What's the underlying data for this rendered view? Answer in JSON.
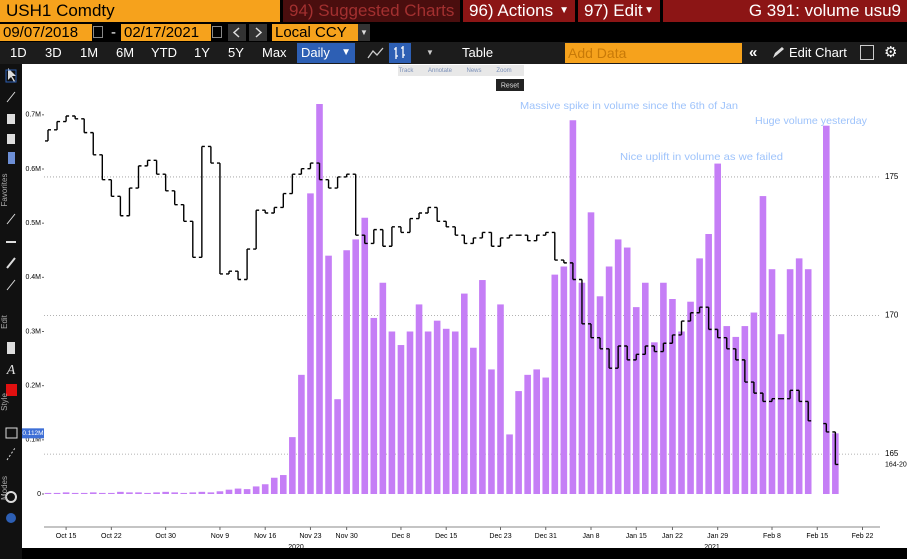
{
  "toolbar": {
    "ticker": "USH1 Comdty",
    "suggested": "94) Suggested Charts",
    "actions": "96) Actions",
    "edit": "97) Edit",
    "function": "G 391: volume usu9",
    "start_date": "09/07/2018",
    "date_sep": "-",
    "end_date": "02/17/2021",
    "currency": "Local CCY",
    "ranges": [
      "1D",
      "3D",
      "1M",
      "6M",
      "YTD",
      "1Y",
      "5Y",
      "Max"
    ],
    "frequency": "Daily",
    "table": "Table",
    "add_data": "Add Data",
    "edit_chart": "Edit Chart"
  },
  "sidebar": {
    "sections": [
      "Favorites",
      "Edit",
      "Style",
      "Modes"
    ]
  },
  "chart_tools": {
    "tools": [
      "Track",
      "Annotate",
      "News",
      "Zoom"
    ],
    "reset": "Reset"
  },
  "chart": {
    "type": "bar+ohlc",
    "categories": [
      null,
      null,
      "Oct 15",
      null,
      null,
      null,
      null,
      "Oct 22",
      null,
      null,
      null,
      null,
      null,
      "Oct 30",
      null,
      null,
      null,
      null,
      null,
      "Nov 9",
      null,
      null,
      null,
      null,
      "Nov 16",
      null,
      null,
      null,
      null,
      "Nov 23",
      null,
      null,
      null,
      "Nov 30",
      null,
      null,
      null,
      null,
      null,
      "Dec 8",
      null,
      null,
      null,
      null,
      "Dec 15",
      null,
      null,
      null,
      null,
      null,
      "Dec 23",
      null,
      null,
      null,
      null,
      "Dec 31",
      null,
      null,
      null,
      null,
      "Jan 8",
      null,
      null,
      null,
      null,
      "Jan 15",
      null,
      null,
      null,
      "Jan 22",
      null,
      null,
      null,
      null,
      "Jan 29",
      null,
      null,
      null,
      null,
      null,
      "Feb 8",
      null,
      null,
      null,
      null,
      "Feb 15",
      null,
      null,
      null,
      null,
      "Feb 22"
    ],
    "x_year_labels": [
      "2020",
      "2021"
    ],
    "volume": {
      "color": "#c57ef6",
      "values": [
        2000,
        2000,
        3000,
        2000,
        2000,
        3000,
        2000,
        2000,
        4000,
        3000,
        3000,
        2000,
        3000,
        4000,
        3000,
        2000,
        3000,
        4000,
        3000,
        5000,
        8000,
        10000,
        9000,
        14000,
        18000,
        30000,
        35000,
        105000,
        220000,
        555000,
        720000,
        440000,
        175000,
        450000,
        470000,
        510000,
        325000,
        390000,
        300000,
        275000,
        300000,
        350000,
        300000,
        320000,
        305000,
        300000,
        370000,
        270000,
        395000,
        230000,
        350000,
        110000,
        190000,
        220000,
        230000,
        215000,
        405000,
        420000,
        690000,
        390000,
        520000,
        365000,
        420000,
        470000,
        455000,
        345000,
        390000,
        280000,
        390000,
        360000,
        300000,
        355000,
        435000,
        480000,
        610000,
        310000,
        290000,
        310000,
        335000,
        550000,
        415000,
        295000,
        415000,
        435000,
        415000,
        null,
        680000,
        112000,
        null,
        null,
        null
      ],
      "last_label": "0.112M"
    },
    "price": {
      "color": "#000000",
      "axis": "y2",
      "open": [
        176.3,
        176.7,
        177.0,
        177.2,
        177.1,
        176.6,
        175.8,
        174.9,
        174.3,
        173.6,
        174.6,
        175.4,
        175.6,
        175.1,
        174.5,
        174.0,
        173.4,
        172.1,
        176.1,
        175.5,
        171.5,
        171.6,
        171.3,
        172.4,
        173.8,
        173.7,
        173.9,
        174.4,
        175.1,
        175.3,
        175.5,
        174.9,
        174.6,
        175.0,
        175.1,
        172.9,
        172.6,
        173.1,
        172.5,
        173.2,
        173.0,
        173.5,
        173.7,
        173.9,
        173.4,
        173.2,
        172.9,
        172.6,
        172.8,
        173.0,
        172.5,
        172.8,
        172.9,
        172.9,
        172.7,
        172.9,
        173.0,
        172.0,
        171.9,
        171.3,
        169.7,
        169.2,
        168.8,
        168.1,
        168.9,
        168.4,
        168.6,
        168.9,
        168.7,
        169.0,
        169.3,
        169.8,
        170.1,
        170.3,
        169.5,
        169.2,
        168.8,
        168.4,
        167.6,
        167.2,
        166.9,
        167.0,
        167.0,
        167.3,
        166.9,
        null,
        166.1,
        165.8,
        null,
        null,
        null
      ],
      "close": [
        176.7,
        177.0,
        177.2,
        177.1,
        176.6,
        175.8,
        174.9,
        174.3,
        173.6,
        174.6,
        175.4,
        175.6,
        175.1,
        174.5,
        174.0,
        173.4,
        172.1,
        176.1,
        175.5,
        171.5,
        171.6,
        171.3,
        172.4,
        173.8,
        173.7,
        173.9,
        174.4,
        175.1,
        175.3,
        175.5,
        174.9,
        174.6,
        175.0,
        175.1,
        172.9,
        172.6,
        173.1,
        172.5,
        173.2,
        173.0,
        173.5,
        173.7,
        173.9,
        173.4,
        173.2,
        172.9,
        172.6,
        172.8,
        173.0,
        172.5,
        172.8,
        172.9,
        172.9,
        172.7,
        172.9,
        173.0,
        172.0,
        171.9,
        171.3,
        169.7,
        169.2,
        168.8,
        168.1,
        168.9,
        168.4,
        168.6,
        168.9,
        168.7,
        169.0,
        169.3,
        169.8,
        170.1,
        170.3,
        169.5,
        169.2,
        168.8,
        168.4,
        167.6,
        167.2,
        166.9,
        167.0,
        167.0,
        167.3,
        166.9,
        166.2,
        null,
        165.8,
        164.625,
        null,
        null,
        null
      ],
      "last_label": "164-20"
    },
    "ylim": [
      0,
      792000
    ],
    "yticks": [
      0,
      {
        "value": 100000,
        "label": "0.1M"
      },
      {
        "value": 200000,
        "label": "0.2M"
      },
      {
        "value": 300000,
        "label": "0.3M"
      },
      {
        "value": 400000,
        "label": "0.4M"
      },
      {
        "value": 500000,
        "label": "0.5M"
      },
      {
        "value": 600000,
        "label": "0.6M"
      },
      {
        "value": 700000,
        "label": "0.7M"
      }
    ],
    "y2lim": [
      163.56,
      179.04
    ],
    "y2ticks": [
      165,
      170,
      175
    ],
    "grid": "y2",
    "annotations": [
      "Massive spike in volume since the 6th of Jan",
      "Huge volume yesterday",
      "Nice uplift in volume as we failed"
    ]
  }
}
